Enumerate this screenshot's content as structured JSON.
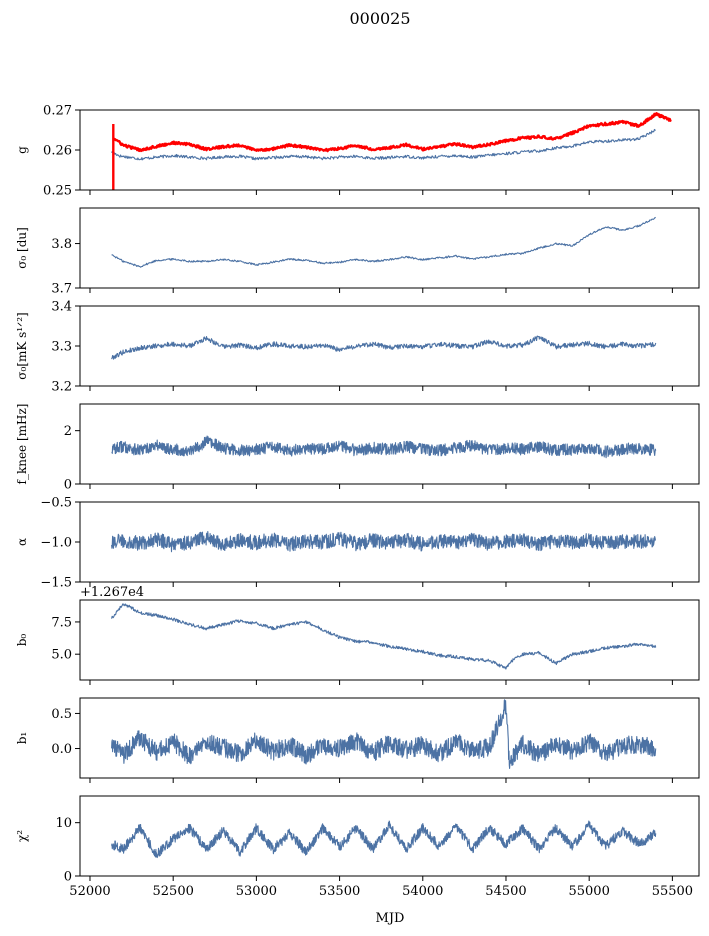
{
  "figure": {
    "title": "000025",
    "xlabel": "MJD"
  },
  "colors": {
    "series": "#4c72a4",
    "highlight": "#ff0000",
    "axes": "#000000"
  },
  "chart_data": [
    {
      "type": "line",
      "id": "g",
      "ylabel": "g",
      "ylim": [
        0.25,
        0.27
      ],
      "yticks": [
        "0.25",
        "0.26",
        "0.27"
      ],
      "yticks_v": [
        0.25,
        0.26,
        0.27
      ],
      "xlim": [
        51940,
        55660
      ],
      "xticks": [
        52000,
        52500,
        53000,
        53500,
        54000,
        54500,
        55000,
        55500
      ],
      "grid": false,
      "show_xtick_labels": false,
      "series": [
        {
          "kind": "main",
          "x": [
            52130,
            52180,
            52300,
            52400,
            52500,
            52600,
            52700,
            52800,
            52900,
            53000,
            53100,
            53200,
            53300,
            53400,
            53500,
            53600,
            53700,
            53800,
            53900,
            54000,
            54100,
            54200,
            54300,
            54400,
            54500,
            54600,
            54700,
            54800,
            54900,
            55000,
            55100,
            55200,
            55300,
            55400
          ],
          "y": [
            0.2595,
            0.2585,
            0.2578,
            0.2582,
            0.2586,
            0.2582,
            0.2579,
            0.2583,
            0.2584,
            0.2578,
            0.2581,
            0.2584,
            0.2583,
            0.2579,
            0.2582,
            0.2584,
            0.2579,
            0.2581,
            0.2584,
            0.258,
            0.2584,
            0.2586,
            0.2582,
            0.2587,
            0.2591,
            0.2595,
            0.2598,
            0.2605,
            0.261,
            0.262,
            0.2622,
            0.2625,
            0.2628,
            0.265
          ]
        },
        {
          "kind": "highlight",
          "x": [
            52140,
            52200,
            52300,
            52400,
            52500,
            52600,
            52700,
            52800,
            52900,
            53000,
            53100,
            53200,
            53300,
            53400,
            53500,
            53600,
            53700,
            53800,
            53900,
            54000,
            54100,
            54200,
            54300,
            54400,
            54500,
            54600,
            54700,
            54800,
            54900,
            55000,
            55100,
            55200,
            55300,
            55400,
            55490
          ],
          "y": [
            0.263,
            0.2612,
            0.26,
            0.2609,
            0.2618,
            0.2614,
            0.2602,
            0.2608,
            0.2612,
            0.2599,
            0.2603,
            0.2612,
            0.2607,
            0.2599,
            0.2604,
            0.2611,
            0.2602,
            0.2606,
            0.2613,
            0.2602,
            0.2608,
            0.2615,
            0.2607,
            0.2614,
            0.2623,
            0.263,
            0.2633,
            0.2628,
            0.2643,
            0.266,
            0.2665,
            0.267,
            0.266,
            0.269,
            0.2675
          ]
        }
      ]
    },
    {
      "type": "line",
      "id": "sigma0-du",
      "ylabel": "σ₀ [du]",
      "ylim": [
        3.7,
        3.88
      ],
      "yticks": [
        "3.7",
        "3.8"
      ],
      "yticks_v": [
        3.7,
        3.8
      ],
      "xlim": [
        51940,
        55660
      ],
      "xticks": [
        52000,
        52500,
        53000,
        53500,
        54000,
        54500,
        55000,
        55500
      ],
      "grid": false,
      "show_xtick_labels": false,
      "series": [
        {
          "x": [
            52130,
            52200,
            52300,
            52400,
            52500,
            52600,
            52700,
            52800,
            52900,
            53000,
            53100,
            53200,
            53300,
            53400,
            53500,
            53600,
            53700,
            53800,
            53900,
            54000,
            54100,
            54200,
            54300,
            54400,
            54500,
            54600,
            54700,
            54800,
            54900,
            55000,
            55100,
            55200,
            55300,
            55400
          ],
          "y": [
            3.775,
            3.76,
            3.748,
            3.762,
            3.765,
            3.76,
            3.76,
            3.764,
            3.76,
            3.752,
            3.758,
            3.765,
            3.762,
            3.756,
            3.758,
            3.764,
            3.76,
            3.764,
            3.77,
            3.764,
            3.768,
            3.772,
            3.765,
            3.77,
            3.776,
            3.778,
            3.79,
            3.8,
            3.795,
            3.82,
            3.838,
            3.83,
            3.84,
            3.858
          ]
        }
      ]
    },
    {
      "type": "line",
      "id": "sigma0-mks",
      "ylabel": "σ₀[mK s¹ᐟ²]",
      "ylim": [
        3.2,
        3.4
      ],
      "yticks": [
        "3.2",
        "3.3",
        "3.4"
      ],
      "yticks_v": [
        3.2,
        3.3,
        3.4
      ],
      "xlim": [
        51940,
        55660
      ],
      "xticks": [
        52000,
        52500,
        53000,
        53500,
        54000,
        54500,
        55000,
        55500
      ],
      "grid": false,
      "show_xtick_labels": false,
      "series": [
        {
          "x": [
            52130,
            52200,
            52300,
            52400,
            52500,
            52600,
            52700,
            52800,
            52900,
            53000,
            53100,
            53200,
            53300,
            53400,
            53500,
            53600,
            53700,
            53800,
            53900,
            54000,
            54100,
            54200,
            54300,
            54400,
            54500,
            54600,
            54700,
            54800,
            54900,
            55000,
            55100,
            55200,
            55300,
            55400
          ],
          "y": [
            3.27,
            3.285,
            3.295,
            3.3,
            3.305,
            3.3,
            3.32,
            3.298,
            3.302,
            3.296,
            3.305,
            3.3,
            3.298,
            3.302,
            3.29,
            3.3,
            3.305,
            3.296,
            3.3,
            3.298,
            3.305,
            3.3,
            3.298,
            3.312,
            3.3,
            3.302,
            3.322,
            3.298,
            3.303,
            3.306,
            3.298,
            3.304,
            3.3,
            3.305
          ]
        }
      ]
    },
    {
      "type": "line",
      "id": "fknee",
      "ylabel": "f_knee [mHz]",
      "ylim": [
        0,
        3.0
      ],
      "yticks": [
        "0",
        "2"
      ],
      "yticks_v": [
        0,
        2
      ],
      "xlim": [
        51940,
        55660
      ],
      "xticks": [
        52000,
        52500,
        53000,
        53500,
        54000,
        54500,
        55000,
        55500
      ],
      "grid": false,
      "show_xtick_labels": false,
      "series": [
        {
          "x": [
            52130,
            52200,
            52300,
            52400,
            52500,
            52600,
            52700,
            52800,
            52900,
            53000,
            53100,
            53200,
            53300,
            53400,
            53500,
            53600,
            53700,
            53800,
            53900,
            54000,
            54100,
            54200,
            54300,
            54400,
            54500,
            54600,
            54700,
            54800,
            54900,
            55000,
            55100,
            55200,
            55300,
            55400
          ],
          "y": [
            1.3,
            1.4,
            1.25,
            1.45,
            1.3,
            1.2,
            1.6,
            1.35,
            1.25,
            1.3,
            1.4,
            1.25,
            1.35,
            1.3,
            1.45,
            1.25,
            1.35,
            1.3,
            1.4,
            1.3,
            1.25,
            1.35,
            1.45,
            1.25,
            1.35,
            1.3,
            1.4,
            1.25,
            1.3,
            1.35,
            1.2,
            1.3,
            1.35,
            1.25
          ]
        }
      ]
    },
    {
      "type": "line",
      "id": "alpha",
      "ylabel": "α",
      "ylim": [
        -1.5,
        -0.5
      ],
      "yticks": [
        "−1.5",
        "−1.0",
        "−0.5"
      ],
      "yticks_v": [
        -1.5,
        -1.0,
        -0.5
      ],
      "xlim": [
        51940,
        55660
      ],
      "xticks": [
        52000,
        52500,
        53000,
        53500,
        54000,
        54500,
        55000,
        55500
      ],
      "grid": false,
      "show_xtick_labels": false,
      "series": [
        {
          "x": [
            52130,
            52200,
            52300,
            52400,
            52500,
            52600,
            52700,
            52800,
            52900,
            53000,
            53100,
            53200,
            53300,
            53400,
            53500,
            53600,
            53700,
            53800,
            53900,
            54000,
            54100,
            54200,
            54300,
            54400,
            54500,
            54600,
            54700,
            54800,
            54900,
            55000,
            55100,
            55200,
            55300,
            55400
          ],
          "y": [
            -1.0,
            -0.98,
            -1.02,
            -0.96,
            -1.04,
            -1.0,
            -0.95,
            -1.03,
            -0.98,
            -1.01,
            -0.97,
            -1.03,
            -0.99,
            -1.0,
            -0.96,
            -1.02,
            -0.98,
            -1.01,
            -0.97,
            -1.03,
            -0.99,
            -1.0,
            -0.98,
            -1.02,
            -1.0,
            -0.97,
            -1.03,
            -0.99,
            -1.01,
            -0.98,
            -1.02,
            -1.0,
            -0.99,
            -0.98
          ]
        }
      ]
    },
    {
      "type": "line",
      "id": "b0",
      "ylabel": "b₀",
      "offset_text": "+1.267e4",
      "ylim": [
        3.0,
        9.2
      ],
      "yticks": [
        "5.0",
        "7.5"
      ],
      "yticks_v": [
        5.0,
        7.5
      ],
      "xlim": [
        51940,
        55660
      ],
      "xticks": [
        52000,
        52500,
        53000,
        53500,
        54000,
        54500,
        55000,
        55500
      ],
      "grid": false,
      "show_xtick_labels": false,
      "series": [
        {
          "x": [
            52130,
            52200,
            52250,
            52300,
            52400,
            52500,
            52600,
            52700,
            52800,
            52900,
            53000,
            53100,
            53200,
            53300,
            53400,
            53500,
            53600,
            53700,
            53800,
            53900,
            54000,
            54100,
            54200,
            54300,
            54400,
            54500,
            54550,
            54600,
            54700,
            54800,
            54900,
            55000,
            55100,
            55200,
            55300,
            55400
          ],
          "y": [
            7.8,
            8.9,
            8.6,
            8.2,
            8.0,
            7.7,
            7.3,
            7.0,
            7.3,
            7.6,
            7.4,
            7.0,
            7.3,
            7.5,
            6.9,
            6.3,
            6.0,
            5.9,
            5.6,
            5.4,
            5.2,
            4.9,
            4.8,
            4.6,
            4.5,
            3.9,
            4.7,
            5.0,
            5.1,
            4.3,
            5.0,
            5.2,
            5.5,
            5.6,
            5.8,
            5.6
          ]
        }
      ]
    },
    {
      "type": "line",
      "id": "b1",
      "ylabel": "b₁",
      "ylim": [
        -0.42,
        0.72
      ],
      "yticks": [
        "0.0",
        "0.5"
      ],
      "yticks_v": [
        0.0,
        0.5
      ],
      "xlim": [
        51940,
        55660
      ],
      "xticks": [
        52000,
        52500,
        53000,
        53500,
        54000,
        54500,
        55000,
        55500
      ],
      "grid": false,
      "show_xtick_labels": false,
      "series": [
        {
          "x": [
            52130,
            52200,
            52300,
            52400,
            52500,
            52600,
            52700,
            52800,
            52900,
            53000,
            53100,
            53200,
            53300,
            53400,
            53500,
            53600,
            53700,
            53800,
            53900,
            54000,
            54100,
            54200,
            54300,
            54400,
            54500,
            54520,
            54600,
            54700,
            54800,
            54900,
            55000,
            55100,
            55200,
            55300,
            55400
          ],
          "y": [
            0.05,
            -0.1,
            0.15,
            -0.05,
            0.1,
            -0.12,
            0.08,
            0.02,
            -0.08,
            0.12,
            -0.04,
            0.06,
            -0.1,
            0.04,
            0.0,
            0.1,
            -0.06,
            0.08,
            -0.02,
            0.05,
            -0.08,
            0.1,
            -0.04,
            0.02,
            0.62,
            -0.2,
            0.06,
            -0.1,
            0.08,
            -0.04,
            0.1,
            -0.08,
            0.04,
            0.06,
            0.0
          ]
        }
      ]
    },
    {
      "type": "line",
      "id": "chi2",
      "ylabel": "χ²",
      "ylim": [
        0,
        15
      ],
      "yticks": [
        "0",
        "10"
      ],
      "yticks_v": [
        0,
        10
      ],
      "xlim": [
        51940,
        55660
      ],
      "xticks": [
        52000,
        52500,
        53000,
        53500,
        54000,
        54500,
        55000,
        55500
      ],
      "xtick_labels": [
        "52000",
        "52500",
        "53000",
        "53500",
        "54000",
        "54500",
        "55000",
        "55500"
      ],
      "grid": false,
      "show_xtick_labels": true,
      "series": [
        {
          "x": [
            52130,
            52200,
            52300,
            52400,
            52500,
            52600,
            52700,
            52800,
            52900,
            53000,
            53100,
            53200,
            53300,
            53400,
            53500,
            53600,
            53700,
            53800,
            53900,
            54000,
            54100,
            54200,
            54300,
            54400,
            54500,
            54600,
            54700,
            54800,
            54900,
            55000,
            55100,
            55200,
            55300,
            55400
          ],
          "y": [
            6.0,
            5.0,
            9.0,
            4.0,
            7.0,
            9.0,
            5.0,
            8.5,
            4.5,
            9.0,
            5.0,
            8.0,
            4.5,
            9.0,
            5.5,
            9.0,
            5.0,
            9.5,
            5.0,
            9.0,
            5.5,
            9.5,
            5.0,
            9.0,
            6.0,
            9.0,
            5.0,
            9.0,
            5.5,
            9.5,
            5.5,
            8.5,
            6.0,
            8.0
          ]
        }
      ]
    }
  ]
}
